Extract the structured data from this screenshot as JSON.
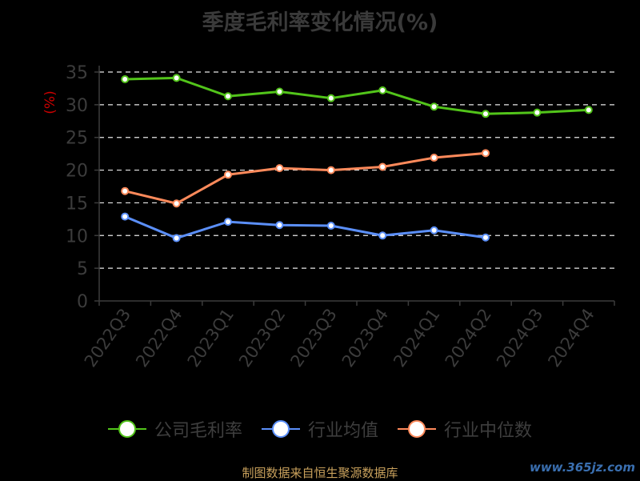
{
  "title": "季度毛利率变化情况(%)",
  "source_note": "制图数据来自恒生聚源数据库",
  "watermark": "www.365jz.com",
  "colors": {
    "company": "#52c41a",
    "industry_avg": "#5b8ff9",
    "industry_median": "#ff8a5b",
    "grid": "#e8e8e8",
    "axis_text": "#3c3c3c",
    "ylabel": "#cc0000"
  },
  "chart_data": {
    "type": "line",
    "title": "季度毛利率变化情况(%)",
    "ylabel": "(%)",
    "xlabel": "",
    "categories": [
      "2022Q3",
      "2022Q4",
      "2023Q1",
      "2023Q2",
      "2023Q3",
      "2023Q4",
      "2024Q1",
      "2024Q2",
      "2024Q3",
      "2024Q4"
    ],
    "ylim": [
      0,
      35
    ],
    "yticks": [
      0,
      5,
      10,
      15,
      20,
      25,
      30,
      35
    ],
    "grid": true,
    "legend_position": "bottom",
    "series": [
      {
        "name": "公司毛利率",
        "values": [
          33.9,
          34.1,
          31.3,
          32.0,
          31.0,
          32.2,
          29.7,
          28.6,
          28.8,
          29.2
        ]
      },
      {
        "name": "行业均值",
        "values": [
          12.9,
          9.6,
          12.1,
          11.6,
          11.5,
          10.0,
          10.8,
          9.7,
          null,
          null
        ]
      },
      {
        "name": "行业中位数",
        "values": [
          16.8,
          14.9,
          19.3,
          20.3,
          20.0,
          20.5,
          21.9,
          22.6,
          null,
          null
        ]
      }
    ]
  }
}
